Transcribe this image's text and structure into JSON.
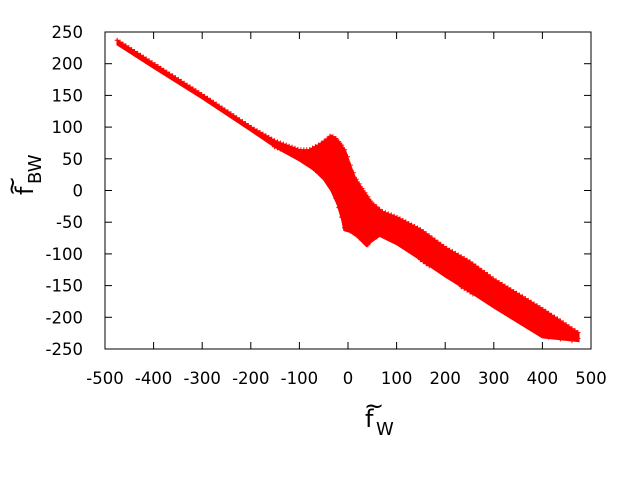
{
  "chart_data": {
    "type": "scatter",
    "title": "",
    "xlabel": {
      "base": "f",
      "accent": "~",
      "sub": "W"
    },
    "ylabel": {
      "base": "f",
      "accent": "~",
      "sub": "BW"
    },
    "xlim": [
      -500,
      500
    ],
    "ylim": [
      -250,
      250
    ],
    "x_ticks": [
      -500,
      -400,
      -300,
      -200,
      -100,
      0,
      100,
      200,
      300,
      400,
      500
    ],
    "x_tick_labels": [
      "-500",
      "-400",
      "-300",
      "-200",
      "-100",
      "0",
      "100",
      "200",
      "300",
      "400",
      "500"
    ],
    "y_ticks": [
      250,
      200,
      150,
      100,
      50,
      0,
      -50,
      -100,
      -150,
      -200,
      -250
    ],
    "y_tick_labels": [
      "250",
      "200",
      "150",
      "100",
      "50",
      "0",
      "-50",
      "-100",
      "-150",
      "-200",
      "-250"
    ],
    "grid": false,
    "legend": "none",
    "marker": "+",
    "color": "#ff0000",
    "series": [
      {
        "region_boundary": {
          "upper": [
            [
              -475,
              237
            ],
            [
              -400,
              200
            ],
            [
              -300,
              151
            ],
            [
              -200,
              100
            ],
            [
              -150,
              78
            ],
            [
              -100,
              64
            ],
            [
              -80,
              64
            ],
            [
              -60,
              72
            ],
            [
              -45,
              80
            ],
            [
              -35,
              87
            ],
            [
              -25,
              82
            ],
            [
              -15,
              74
            ],
            [
              -5,
              62
            ],
            [
              5,
              40
            ],
            [
              15,
              20
            ],
            [
              30,
              2
            ],
            [
              50,
              -20
            ],
            [
              70,
              -33
            ],
            [
              100,
              -42
            ],
            [
              150,
              -62
            ],
            [
              200,
              -90
            ],
            [
              250,
              -112
            ],
            [
              300,
              -140
            ],
            [
              400,
              -187
            ],
            [
              475,
              -225
            ]
          ],
          "lower": [
            [
              -475,
              230
            ],
            [
              -400,
              193
            ],
            [
              -300,
              145
            ],
            [
              -200,
              94
            ],
            [
              -150,
              68
            ],
            [
              -100,
              47
            ],
            [
              -70,
              32
            ],
            [
              -50,
              17
            ],
            [
              -35,
              0
            ],
            [
              -22,
              -22
            ],
            [
              -13,
              -45
            ],
            [
              -8,
              -63
            ],
            [
              5,
              -66
            ],
            [
              20,
              -74
            ],
            [
              30,
              -82
            ],
            [
              38,
              -88
            ],
            [
              50,
              -80
            ],
            [
              65,
              -72
            ],
            [
              100,
              -85
            ],
            [
              150,
              -110
            ],
            [
              200,
              -136
            ],
            [
              250,
              -160
            ],
            [
              300,
              -185
            ],
            [
              400,
              -232
            ],
            [
              475,
              -238
            ]
          ]
        }
      }
    ]
  }
}
